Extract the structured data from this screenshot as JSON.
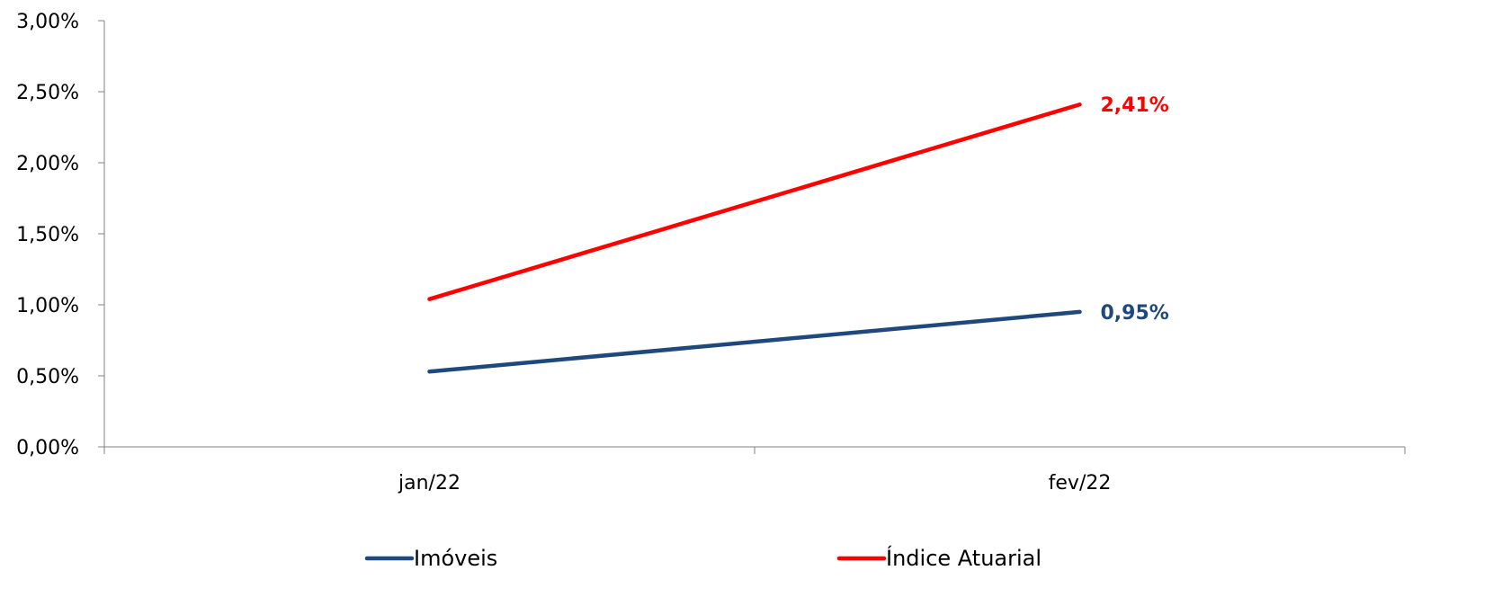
{
  "chart_data": {
    "type": "line",
    "categories": [
      "jan/22",
      "fev/22"
    ],
    "series": [
      {
        "name": "Imóveis",
        "values": [
          0.53,
          0.95
        ],
        "color": "#1f497d",
        "end_label": "0,95%"
      },
      {
        "name": "Índice Atuarial",
        "values": [
          1.04,
          2.41
        ],
        "color": "#ff0000",
        "end_label": "2,41%"
      }
    ],
    "ylim": [
      0,
      3
    ],
    "yticks": [
      "0,00%",
      "0,50%",
      "1,00%",
      "1,50%",
      "2,00%",
      "2,50%",
      "3,00%"
    ],
    "grid": false,
    "legend_position": "bottom"
  }
}
